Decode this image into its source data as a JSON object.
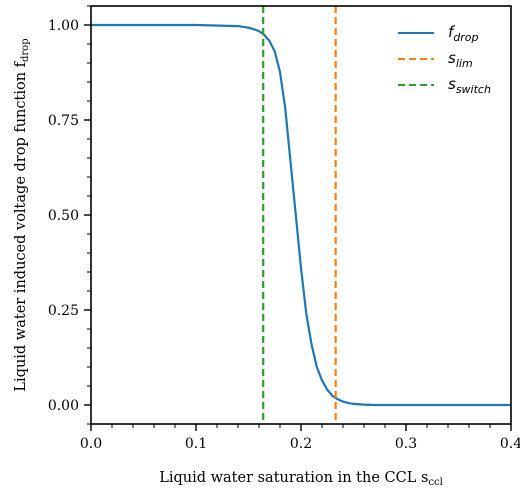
{
  "chart_data": {
    "type": "line",
    "xlabel": "Liquid water saturation in the CCL s",
    "xlabel_sub": "ccl",
    "ylabel": "Liquid water induced voltage drop function f",
    "ylabel_sub": "drop",
    "xlim": [
      0.0,
      0.4
    ],
    "ylim": [
      -0.05,
      1.05
    ],
    "xticks": [
      0.0,
      0.1,
      0.2,
      0.3,
      0.4
    ],
    "xtick_labels": [
      "0.0",
      "0.1",
      "0.2",
      "0.3",
      "0.4"
    ],
    "yticks": [
      0.0,
      0.25,
      0.5,
      0.75,
      1.0
    ],
    "ytick_labels": [
      "0.00",
      "0.25",
      "0.50",
      "0.75",
      "1.00"
    ],
    "grid": false,
    "legend_position": "top-right",
    "series": [
      {
        "name": "f",
        "name_sub": "drop",
        "style": "solid",
        "color": "#1f77b4",
        "x": [
          0.0,
          0.05,
          0.1,
          0.14,
          0.15,
          0.155,
          0.16,
          0.165,
          0.17,
          0.175,
          0.18,
          0.185,
          0.19,
          0.195,
          0.2,
          0.205,
          0.21,
          0.215,
          0.22,
          0.225,
          0.23,
          0.235,
          0.24,
          0.245,
          0.25,
          0.26,
          0.27,
          0.3,
          0.35,
          0.4
        ],
        "y": [
          1.0,
          1.0,
          1.0,
          0.997,
          0.993,
          0.989,
          0.984,
          0.974,
          0.958,
          0.93,
          0.876,
          0.78,
          0.64,
          0.5,
          0.36,
          0.24,
          0.16,
          0.1,
          0.065,
          0.04,
          0.024,
          0.015,
          0.009,
          0.005,
          0.003,
          0.001,
          0.0,
          0.0,
          0.0,
          0.0
        ]
      },
      {
        "name": "s",
        "name_sub": "lim",
        "style": "dashed",
        "color": "#ff7f0e",
        "vline_x": 0.233
      },
      {
        "name": "s",
        "name_sub": "switch",
        "style": "dashed",
        "color": "#2ca02c",
        "vline_x": 0.164
      }
    ]
  }
}
